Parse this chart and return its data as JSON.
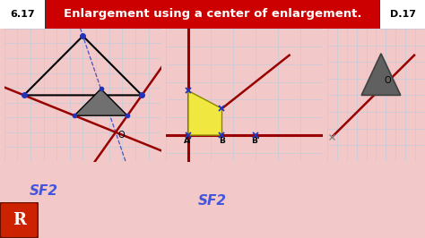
{
  "title": "Enlargement using a center of enlargement.",
  "title_num": "6.17",
  "title_code": "D.17",
  "title_bg": "#cc0000",
  "bg_color": "#f2c8c8",
  "grid_bg": "#dce8f0",
  "sf2_color": "#4455dd",
  "red_color": "#990000",
  "dark_tri_color": "#666666",
  "yellow_fill": "#f0e840",
  "blue_color": "#2233bb",
  "logo_bg": "#cc2200"
}
